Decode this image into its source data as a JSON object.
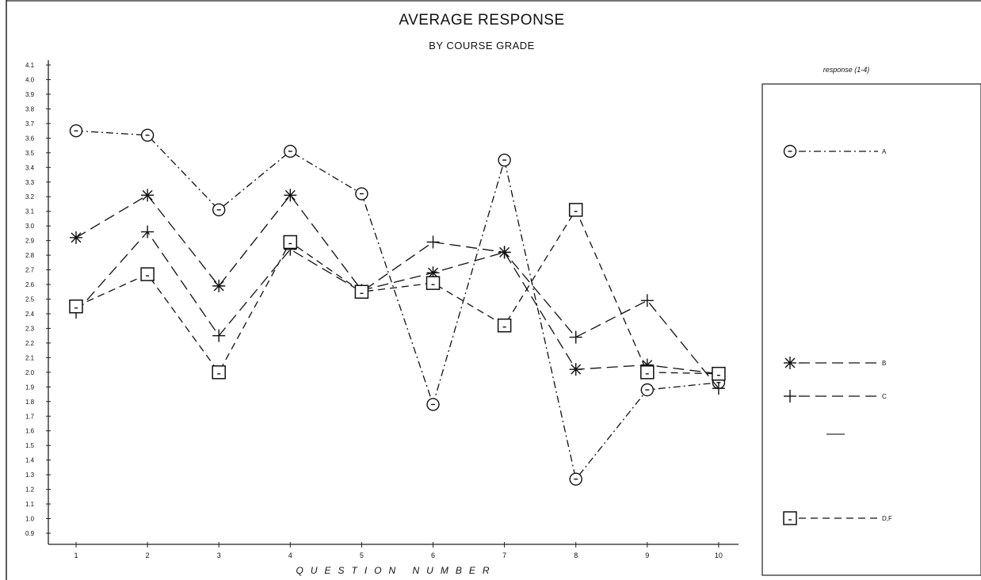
{
  "chart_data": {
    "type": "line",
    "title": "AVERAGE RESPONSE",
    "subtitle": "BY COURSE GRADE",
    "xlabel": "QUESTION NUMBER",
    "ylabel": "",
    "x": [
      1,
      2,
      3,
      4,
      5,
      6,
      7,
      8,
      9,
      10
    ],
    "ylim": [
      0.9,
      4.1
    ],
    "yticks": [
      "4.1",
      "4.0",
      "3.9",
      "3.8",
      "3.7",
      "3.6",
      "3.5",
      "3.4",
      "3.3",
      "3.2",
      "3.1",
      "3.0",
      "2.9",
      "2.8",
      "2.7",
      "2.6",
      "2.5",
      "2.4",
      "2.3",
      "2.2",
      "2.1",
      "2.0",
      "1.9",
      "1.8",
      "1.7",
      "1.6",
      "1.5",
      "1.4",
      "1.3",
      "1.2",
      "1.1",
      "1.0",
      "0.9"
    ],
    "grid": false,
    "legend": {
      "title": "response (1-4)",
      "placement": "right"
    },
    "series": [
      {
        "name": "A",
        "marker": "circle",
        "dash": "dash-dot",
        "values": [
          3.65,
          3.62,
          3.11,
          3.51,
          3.22,
          1.78,
          3.45,
          1.27,
          1.88,
          1.93
        ]
      },
      {
        "name": "B",
        "marker": "asterisk",
        "dash": "long-dash",
        "values": [
          2.92,
          3.21,
          2.59,
          3.21,
          2.56,
          2.68,
          2.82,
          2.02,
          2.05,
          1.99
        ]
      },
      {
        "name": "C",
        "marker": "plus",
        "dash": "long-dash",
        "values": [
          2.41,
          2.96,
          2.25,
          2.84,
          2.55,
          2.89,
          2.82,
          2.24,
          2.49,
          1.89
        ]
      },
      {
        "name": "D,F",
        "marker": "square",
        "dash": "dash",
        "values": [
          2.45,
          2.67,
          2.0,
          2.89,
          2.55,
          2.61,
          2.32,
          3.11,
          2.0,
          1.99
        ]
      }
    ]
  }
}
